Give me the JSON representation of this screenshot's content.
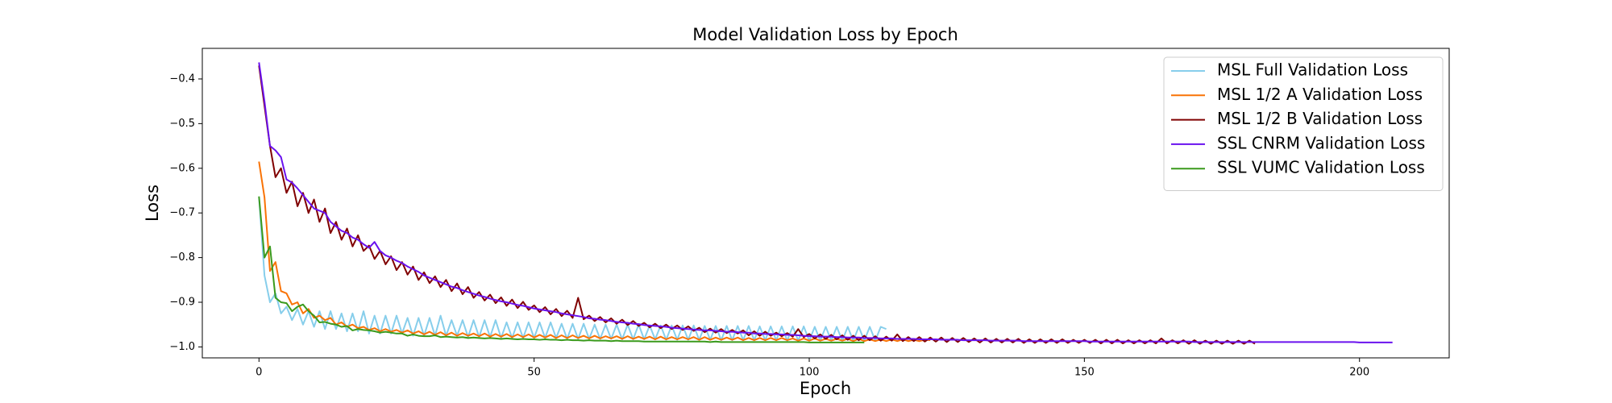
{
  "chart_data": {
    "type": "line",
    "title": "Model Validation Loss by Epoch",
    "x_label": "Epoch",
    "y_label": "Loss",
    "xlim": [
      -10.3,
      216.3
    ],
    "xticks": [
      0,
      50,
      100,
      150,
      200
    ],
    "ylim": [
      -1.0245,
      -0.3315
    ],
    "yticks": [
      {
        "value": -1.0,
        "label": "−1.0"
      },
      {
        "value": -0.9,
        "label": "−0.9"
      },
      {
        "value": -0.8,
        "label": "−0.8"
      },
      {
        "value": -0.7,
        "label": "−0.7"
      },
      {
        "value": -0.6,
        "label": "−0.6"
      },
      {
        "value": -0.5,
        "label": "−0.5"
      },
      {
        "value": -0.4,
        "label": "−0.4"
      }
    ],
    "grid": false,
    "legend": "upper right",
    "series": [
      {
        "name": "MSL Full Validation Loss",
        "color": "#87ceeb",
        "values": [
          -0.665,
          -0.84,
          -0.9,
          -0.88,
          -0.925,
          -0.91,
          -0.94,
          -0.915,
          -0.95,
          -0.92,
          -0.955,
          -0.92,
          -0.96,
          -0.92,
          -0.96,
          -0.925,
          -0.965,
          -0.925,
          -0.965,
          -0.92,
          -0.97,
          -0.93,
          -0.97,
          -0.93,
          -0.97,
          -0.93,
          -0.97,
          -0.935,
          -0.975,
          -0.935,
          -0.975,
          -0.935,
          -0.975,
          -0.93,
          -0.975,
          -0.94,
          -0.975,
          -0.94,
          -0.978,
          -0.94,
          -0.978,
          -0.94,
          -0.978,
          -0.94,
          -0.98,
          -0.945,
          -0.98,
          -0.945,
          -0.98,
          -0.945,
          -0.98,
          -0.945,
          -0.98,
          -0.945,
          -0.98,
          -0.948,
          -0.982,
          -0.948,
          -0.982,
          -0.948,
          -0.982,
          -0.95,
          -0.982,
          -0.95,
          -0.982,
          -0.95,
          -0.983,
          -0.95,
          -0.983,
          -0.95,
          -0.983,
          -0.952,
          -0.983,
          -0.952,
          -0.984,
          -0.952,
          -0.984,
          -0.952,
          -0.984,
          -0.952,
          -0.984,
          -0.953,
          -0.984,
          -0.953,
          -0.985,
          -0.953,
          -0.985,
          -0.953,
          -0.985,
          -0.953,
          -0.985,
          -0.954,
          -0.985,
          -0.954,
          -0.985,
          -0.954,
          -0.986,
          -0.954,
          -0.986,
          -0.954,
          -0.986,
          -0.955,
          -0.986,
          -0.955,
          -0.986,
          -0.955,
          -0.986,
          -0.955,
          -0.986,
          -0.955,
          -0.986,
          -0.955,
          -0.986,
          -0.955,
          -0.96
        ]
      },
      {
        "name": "MSL 1/2 A Validation Loss",
        "color": "#f97306",
        "values": [
          -0.585,
          -0.665,
          -0.83,
          -0.81,
          -0.875,
          -0.88,
          -0.905,
          -0.9,
          -0.925,
          -0.915,
          -0.935,
          -0.93,
          -0.94,
          -0.935,
          -0.95,
          -0.945,
          -0.955,
          -0.95,
          -0.958,
          -0.955,
          -0.962,
          -0.958,
          -0.965,
          -0.96,
          -0.966,
          -0.962,
          -0.968,
          -0.963,
          -0.97,
          -0.965,
          -0.972,
          -0.966,
          -0.973,
          -0.967,
          -0.974,
          -0.968,
          -0.975,
          -0.969,
          -0.975,
          -0.97,
          -0.976,
          -0.97,
          -0.977,
          -0.971,
          -0.977,
          -0.971,
          -0.978,
          -0.972,
          -0.978,
          -0.972,
          -0.979,
          -0.973,
          -0.979,
          -0.973,
          -0.98,
          -0.974,
          -0.98,
          -0.974,
          -0.98,
          -0.975,
          -0.981,
          -0.975,
          -0.981,
          -0.976,
          -0.981,
          -0.976,
          -0.982,
          -0.976,
          -0.982,
          -0.977,
          -0.982,
          -0.977,
          -0.983,
          -0.977,
          -0.983,
          -0.978,
          -0.983,
          -0.978,
          -0.983,
          -0.978,
          -0.984,
          -0.978,
          -0.984,
          -0.979,
          -0.984,
          -0.979,
          -0.984,
          -0.979,
          -0.985,
          -0.98,
          -0.985,
          -0.98,
          -0.985,
          -0.98,
          -0.985,
          -0.98,
          -0.985,
          -0.981,
          -0.986,
          -0.981,
          -0.986,
          -0.981,
          -0.986,
          -0.982,
          -0.986,
          -0.982,
          -0.986,
          -0.982,
          -0.987,
          -0.982,
          -0.987,
          -0.983,
          -0.987,
          -0.983,
          -0.987,
          -0.983,
          -0.987,
          -0.983,
          -0.987,
          -0.984,
          -0.987,
          -0.984,
          -0.985
        ]
      },
      {
        "name": "MSL 1/2 B Validation Loss",
        "color": "#800000",
        "values": [
          -0.37,
          -0.46,
          -0.55,
          -0.62,
          -0.6,
          -0.655,
          -0.63,
          -0.685,
          -0.655,
          -0.7,
          -0.67,
          -0.72,
          -0.69,
          -0.745,
          -0.72,
          -0.76,
          -0.735,
          -0.775,
          -0.75,
          -0.785,
          -0.773,
          -0.803,
          -0.785,
          -0.815,
          -0.797,
          -0.828,
          -0.81,
          -0.838,
          -0.82,
          -0.85,
          -0.833,
          -0.857,
          -0.842,
          -0.866,
          -0.85,
          -0.875,
          -0.858,
          -0.882,
          -0.866,
          -0.89,
          -0.877,
          -0.896,
          -0.883,
          -0.902,
          -0.889,
          -0.908,
          -0.894,
          -0.913,
          -0.899,
          -0.917,
          -0.907,
          -0.922,
          -0.911,
          -0.927,
          -0.915,
          -0.931,
          -0.919,
          -0.935,
          -0.89,
          -0.938,
          -0.93,
          -0.942,
          -0.933,
          -0.945,
          -0.936,
          -0.948,
          -0.939,
          -0.951,
          -0.942,
          -0.953,
          -0.946,
          -0.956,
          -0.948,
          -0.958,
          -0.95,
          -0.96,
          -0.952,
          -0.962,
          -0.954,
          -0.964,
          -0.957,
          -0.967,
          -0.959,
          -0.968,
          -0.96,
          -0.969,
          -0.962,
          -0.97,
          -0.963,
          -0.974,
          -0.965,
          -0.975,
          -0.966,
          -0.975,
          -0.968,
          -0.976,
          -0.969,
          -0.977,
          -0.96,
          -0.978,
          -0.971,
          -0.981,
          -0.972,
          -0.982,
          -0.973,
          -0.983,
          -0.974,
          -0.984,
          -0.975,
          -0.985,
          -0.975,
          -0.985,
          -0.976,
          -0.986,
          -0.977,
          -0.986,
          -0.972,
          -0.987,
          -0.978,
          -0.987,
          -0.978,
          -0.988,
          -0.979,
          -0.988,
          -0.979,
          -0.989,
          -0.98,
          -0.989,
          -0.98,
          -0.989,
          -0.981,
          -0.99,
          -0.981,
          -0.99,
          -0.982,
          -0.99,
          -0.982,
          -0.99,
          -0.982,
          -0.991,
          -0.983,
          -0.991,
          -0.983,
          -0.991,
          -0.983,
          -0.991,
          -0.983,
          -0.991,
          -0.984,
          -0.991,
          -0.984,
          -0.991,
          -0.984,
          -0.992,
          -0.984,
          -0.992,
          -0.984,
          -0.992,
          -0.985,
          -0.992,
          -0.985,
          -0.992,
          -0.985,
          -0.992,
          -0.981,
          -0.992,
          -0.985,
          -0.992,
          -0.985,
          -0.993,
          -0.985,
          -0.993,
          -0.986,
          -0.993,
          -0.986,
          -0.993,
          -0.986,
          -0.993,
          -0.986,
          -0.993,
          -0.986,
          -0.993
        ]
      },
      {
        "name": "SSL CNRM Validation Loss",
        "color": "#6a12ee",
        "values": [
          -0.363,
          -0.45,
          -0.55,
          -0.56,
          -0.575,
          -0.625,
          -0.632,
          -0.645,
          -0.66,
          -0.675,
          -0.69,
          -0.695,
          -0.7,
          -0.72,
          -0.73,
          -0.74,
          -0.745,
          -0.755,
          -0.76,
          -0.77,
          -0.778,
          -0.765,
          -0.785,
          -0.795,
          -0.8,
          -0.807,
          -0.812,
          -0.82,
          -0.826,
          -0.832,
          -0.84,
          -0.845,
          -0.85,
          -0.855,
          -0.86,
          -0.865,
          -0.868,
          -0.873,
          -0.877,
          -0.881,
          -0.885,
          -0.888,
          -0.892,
          -0.895,
          -0.898,
          -0.9,
          -0.903,
          -0.906,
          -0.908,
          -0.911,
          -0.914,
          -0.916,
          -0.918,
          -0.92,
          -0.922,
          -0.925,
          -0.927,
          -0.929,
          -0.931,
          -0.933,
          -0.936,
          -0.937,
          -0.939,
          -0.94,
          -0.942,
          -0.944,
          -0.945,
          -0.946,
          -0.948,
          -0.949,
          -0.951,
          -0.952,
          -0.953,
          -0.954,
          -0.955,
          -0.957,
          -0.958,
          -0.959,
          -0.96,
          -0.961,
          -0.962,
          -0.963,
          -0.963,
          -0.964,
          -0.965,
          -0.966,
          -0.966,
          -0.967,
          -0.968,
          -0.968,
          -0.97,
          -0.97,
          -0.971,
          -0.971,
          -0.972,
          -0.972,
          -0.973,
          -0.973,
          -0.974,
          -0.975,
          -0.976,
          -0.976,
          -0.977,
          -0.977,
          -0.977,
          -0.978,
          -0.978,
          -0.979,
          -0.979,
          -0.979,
          -0.98,
          -0.98,
          -0.98,
          -0.981,
          -0.981,
          -0.981,
          -0.982,
          -0.982,
          -0.982,
          -0.982,
          -0.983,
          -0.983,
          -0.983,
          -0.983,
          -0.984,
          -0.984,
          -0.984,
          -0.984,
          -0.985,
          -0.985,
          -0.985,
          -0.985,
          -0.985,
          -0.986,
          -0.986,
          -0.986,
          -0.986,
          -0.986,
          -0.986,
          -0.987,
          -0.987,
          -0.987,
          -0.987,
          -0.987,
          -0.987,
          -0.987,
          -0.987,
          -0.987,
          -0.987,
          -0.987,
          -0.987,
          -0.988,
          -0.988,
          -0.988,
          -0.988,
          -0.988,
          -0.988,
          -0.988,
          -0.988,
          -0.988,
          -0.988,
          -0.988,
          -0.988,
          -0.988,
          -0.988,
          -0.988,
          -0.988,
          -0.988,
          -0.988,
          -0.988,
          -0.989,
          -0.989,
          -0.989,
          -0.989,
          -0.989,
          -0.989,
          -0.989,
          -0.989,
          -0.989,
          -0.989,
          -0.989,
          -0.989,
          -0.989,
          -0.989,
          -0.989,
          -0.989,
          -0.989,
          -0.989,
          -0.989,
          -0.989,
          -0.989,
          -0.989,
          -0.989,
          -0.989,
          -0.989,
          -0.989,
          -0.989,
          -0.989,
          -0.989,
          -0.989,
          -0.99,
          -0.99,
          -0.99,
          -0.99,
          -0.99,
          -0.99,
          -0.99
        ]
      },
      {
        "name": "SSL VUMC Validation Loss",
        "color": "#3a9a1c",
        "values": [
          -0.663,
          -0.8,
          -0.775,
          -0.89,
          -0.9,
          -0.902,
          -0.92,
          -0.91,
          -0.905,
          -0.92,
          -0.93,
          -0.945,
          -0.944,
          -0.948,
          -0.95,
          -0.955,
          -0.953,
          -0.963,
          -0.96,
          -0.962,
          -0.963,
          -0.965,
          -0.968,
          -0.966,
          -0.968,
          -0.97,
          -0.97,
          -0.975,
          -0.972,
          -0.975,
          -0.976,
          -0.976,
          -0.974,
          -0.978,
          -0.977,
          -0.978,
          -0.979,
          -0.978,
          -0.98,
          -0.979,
          -0.98,
          -0.981,
          -0.98,
          -0.981,
          -0.982,
          -0.981,
          -0.982,
          -0.983,
          -0.982,
          -0.983,
          -0.983,
          -0.984,
          -0.983,
          -0.984,
          -0.984,
          -0.985,
          -0.984,
          -0.985,
          -0.985,
          -0.986,
          -0.985,
          -0.986,
          -0.986,
          -0.986,
          -0.987,
          -0.986,
          -0.987,
          -0.987,
          -0.987,
          -0.987,
          -0.988,
          -0.988,
          -0.988,
          -0.988,
          -0.988,
          -0.988,
          -0.988,
          -0.988,
          -0.988,
          -0.988,
          -0.988,
          -0.988,
          -0.989,
          -0.988,
          -0.989,
          -0.989,
          -0.989,
          -0.989,
          -0.989,
          -0.989,
          -0.989,
          -0.989,
          -0.989,
          -0.989,
          -0.989,
          -0.989,
          -0.989,
          -0.989,
          -0.989,
          -0.989,
          -0.99,
          -0.99,
          -0.99,
          -0.99,
          -0.99,
          -0.99,
          -0.99,
          -0.99,
          -0.99,
          -0.99,
          -0.99
        ]
      }
    ]
  }
}
